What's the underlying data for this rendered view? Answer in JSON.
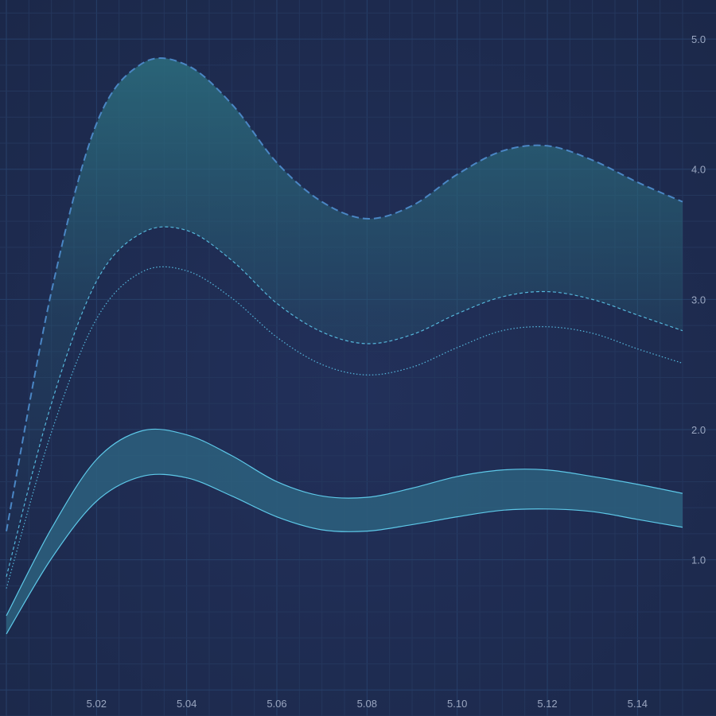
{
  "chart_data": {
    "type": "area",
    "title": "",
    "xlabel": "",
    "ylabel": "",
    "xlim": [
      5.0,
      5.15
    ],
    "ylim": [
      -0.2,
      5.3
    ],
    "grid": true,
    "legend": "none",
    "x_ticks": [
      "5.02",
      "5.04",
      "5.06",
      "5.08",
      "5.10",
      "5.12",
      "5.14"
    ],
    "y_ticks": [
      "1.0",
      "2.0",
      "3.0",
      "4.0",
      "5.0"
    ],
    "x": [
      5.0,
      5.01,
      5.02,
      5.03,
      5.04,
      5.05,
      5.06,
      5.07,
      5.08,
      5.09,
      5.1,
      5.11,
      5.12,
      5.13,
      5.14,
      5.15
    ],
    "series": [
      {
        "role": "upper-envelope",
        "style": "dashed",
        "color": "#4a86c4",
        "values": [
          1.22,
          3.06,
          4.35,
          4.81,
          4.8,
          4.5,
          4.05,
          3.75,
          3.62,
          3.72,
          3.96,
          4.14,
          4.18,
          4.07,
          3.9,
          3.75
        ]
      },
      {
        "role": "upper-inner",
        "style": "short-dash",
        "color": "#55b7dc",
        "values": [
          0.87,
          2.2,
          3.14,
          3.51,
          3.53,
          3.3,
          2.97,
          2.75,
          2.66,
          2.73,
          2.89,
          3.02,
          3.06,
          3.0,
          2.88,
          2.76
        ]
      },
      {
        "role": "lower-inner",
        "style": "dotted",
        "color": "#55b7dc",
        "values": [
          0.78,
          1.98,
          2.85,
          3.21,
          3.22,
          3.01,
          2.71,
          2.5,
          2.42,
          2.48,
          2.63,
          2.76,
          2.79,
          2.74,
          2.62,
          2.51
        ]
      },
      {
        "role": "band-upper",
        "style": "solid",
        "color": "#5dc8e8",
        "values": [
          0.57,
          1.24,
          1.77,
          1.99,
          1.96,
          1.8,
          1.6,
          1.49,
          1.48,
          1.55,
          1.64,
          1.69,
          1.69,
          1.64,
          1.58,
          1.51
        ]
      },
      {
        "role": "band-lower",
        "style": "solid",
        "color": "#5dc8e8",
        "values": [
          0.43,
          1.01,
          1.45,
          1.64,
          1.63,
          1.49,
          1.33,
          1.23,
          1.22,
          1.27,
          1.33,
          1.38,
          1.39,
          1.37,
          1.31,
          1.25
        ]
      }
    ],
    "colors": {
      "background_center": "#22305a",
      "background_edge": "#1b2849",
      "grid_minor": "#24365c",
      "grid_major": "#27406a",
      "envelope_fill_top": "#2b6a7c",
      "band_fill": "#2d607e",
      "tick_text": "#9aa6c0"
    }
  }
}
